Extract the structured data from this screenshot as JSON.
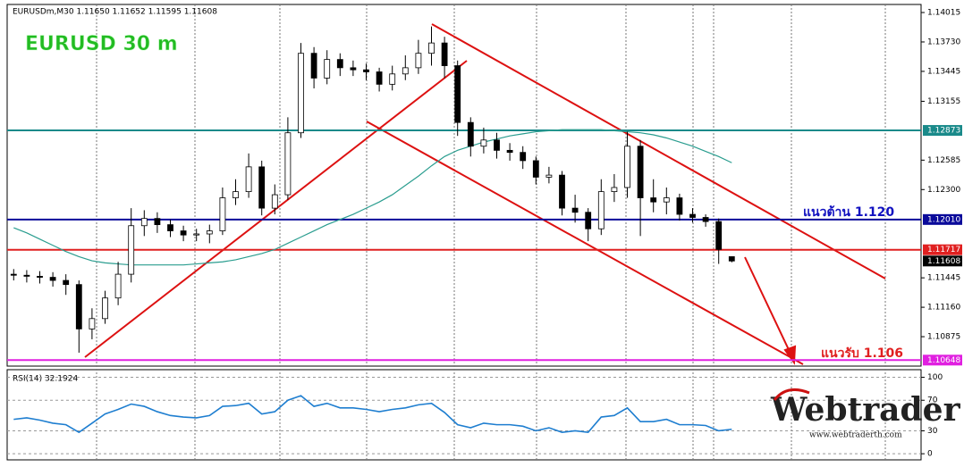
{
  "chart_data": [
    {
      "type": "candlestick",
      "header": "EURUSDm,M30  1.11650 1.11652 1.11595 1.11608",
      "title": "EURUSD 30 m",
      "open": [
        1.1148,
        1.1147,
        1.1146,
        1.1145,
        1.1142,
        1.1138,
        1.1095,
        1.1105,
        1.1125,
        1.1148,
        1.1195,
        1.1202,
        1.1196,
        1.119,
        1.1186,
        1.1187,
        1.119,
        1.1222,
        1.1228,
        1.1252,
        1.1212,
        1.1225,
        1.1285,
        1.1362,
        1.1338,
        1.1356,
        1.1348,
        1.1346,
        1.1344,
        1.1332,
        1.1342,
        1.1348,
        1.1362,
        1.1372,
        1.135,
        1.1295,
        1.1272,
        1.1278,
        1.1268,
        1.1266,
        1.1258,
        1.1242,
        1.1244,
        1.1212,
        1.1208,
        1.1192,
        1.1228,
        1.1232,
        1.1272,
        1.1222,
        1.1218,
        1.1222,
        1.1206,
        1.1203,
        1.1199,
        1.1165
      ],
      "high": [
        1.1153,
        1.1152,
        1.1151,
        1.115,
        1.1148,
        1.1142,
        1.1115,
        1.1132,
        1.116,
        1.1212,
        1.121,
        1.1208,
        1.1201,
        1.1195,
        1.1192,
        1.1196,
        1.1232,
        1.124,
        1.1265,
        1.1258,
        1.1235,
        1.13,
        1.1372,
        1.1368,
        1.1365,
        1.1362,
        1.1355,
        1.1352,
        1.1348,
        1.135,
        1.136,
        1.1375,
        1.1388,
        1.1378,
        1.1355,
        1.13,
        1.129,
        1.1285,
        1.1275,
        1.1272,
        1.1262,
        1.1252,
        1.1248,
        1.1225,
        1.1212,
        1.124,
        1.1245,
        1.1286,
        1.1278,
        1.124,
        1.1232,
        1.1226,
        1.1212,
        1.1206,
        1.1202,
        1.11652
      ],
      "low": [
        1.1142,
        1.114,
        1.1139,
        1.1136,
        1.1128,
        1.1072,
        1.1085,
        1.11,
        1.1118,
        1.114,
        1.1185,
        1.1188,
        1.1184,
        1.118,
        1.118,
        1.1178,
        1.1186,
        1.1215,
        1.1222,
        1.1205,
        1.1206,
        1.122,
        1.128,
        1.1328,
        1.1332,
        1.134,
        1.134,
        1.1336,
        1.1325,
        1.1326,
        1.1336,
        1.1342,
        1.135,
        1.1338,
        1.1282,
        1.1262,
        1.1265,
        1.126,
        1.1258,
        1.125,
        1.1235,
        1.1236,
        1.1205,
        1.1198,
        1.118,
        1.1186,
        1.1218,
        1.1222,
        1.1185,
        1.1208,
        1.1206,
        1.12,
        1.1198,
        1.1194,
        1.1158,
        1.11595
      ],
      "close": [
        1.1147,
        1.1146,
        1.1145,
        1.1142,
        1.1138,
        1.1095,
        1.1105,
        1.1125,
        1.1148,
        1.1195,
        1.1202,
        1.1196,
        1.119,
        1.1186,
        1.1187,
        1.119,
        1.1222,
        1.1228,
        1.1252,
        1.1212,
        1.1225,
        1.1285,
        1.1362,
        1.1338,
        1.1356,
        1.1348,
        1.1346,
        1.1344,
        1.1332,
        1.1342,
        1.1348,
        1.1362,
        1.1372,
        1.135,
        1.1295,
        1.1272,
        1.1278,
        1.1268,
        1.1266,
        1.1258,
        1.1242,
        1.1244,
        1.1212,
        1.1208,
        1.1192,
        1.1228,
        1.1232,
        1.1272,
        1.1222,
        1.1218,
        1.1222,
        1.1206,
        1.1203,
        1.1199,
        1.1172,
        1.11608
      ],
      "ma": {
        "color": "#2a9d8f",
        "values": [
          1.1193,
          1.1188,
          1.1182,
          1.1176,
          1.117,
          1.1165,
          1.1161,
          1.1159,
          1.1158,
          1.1157,
          1.1157,
          1.1157,
          1.1157,
          1.1157,
          1.1158,
          1.1159,
          1.116,
          1.1162,
          1.1165,
          1.1168,
          1.1172,
          1.1178,
          1.1184,
          1.119,
          1.1196,
          1.1201,
          1.1206,
          1.1212,
          1.1218,
          1.1225,
          1.1234,
          1.1243,
          1.1253,
          1.1262,
          1.1268,
          1.1272,
          1.1276,
          1.1279,
          1.1282,
          1.1284,
          1.1286,
          1.1287,
          1.1288,
          1.1288,
          1.1288,
          1.1288,
          1.1287,
          1.1286,
          1.1285,
          1.1283,
          1.128,
          1.1276,
          1.1272,
          1.1267,
          1.1262,
          1.1256
        ]
      },
      "ylim": [
        1.1059,
        1.14093
      ],
      "yticks": [
        {
          "value": 1.14015,
          "label": "1.14015"
        },
        {
          "value": 1.1373,
          "label": "1.13730"
        },
        {
          "value": 1.13445,
          "label": "1.13445"
        },
        {
          "value": 1.13155,
          "label": "1.13155"
        },
        {
          "value": 1.12585,
          "label": "1.12585"
        },
        {
          "value": 1.123,
          "label": "1.12300"
        },
        {
          "value": 1.11445,
          "label": "1.11445"
        },
        {
          "value": 1.1116,
          "label": "1.11160"
        },
        {
          "value": 1.10875,
          "label": "1.10875"
        }
      ],
      "levels": [
        {
          "value": 1.12873,
          "color": "#1a8a8a"
        },
        {
          "value": 1.1201,
          "label": "1.12010",
          "color": "#0a0a9a"
        },
        {
          "value": 1.11717,
          "color": "#e02020"
        },
        {
          "value": 1.10648,
          "color": "#e020e0"
        }
      ],
      "annotations": [
        {
          "text": "แนวต้าน 1.120",
          "color": "#1010c0"
        },
        {
          "text": "แนวรับ 1.106",
          "color": "#e02020"
        }
      ],
      "bull_color": "#ffffff",
      "bear_color": "#000000"
    },
    {
      "type": "line",
      "title": "RSI(14) 32.1924",
      "values": [
        45,
        47,
        44,
        40,
        38,
        28,
        40,
        52,
        58,
        65,
        62,
        55,
        50,
        48,
        47,
        50,
        62,
        63,
        66,
        52,
        55,
        70,
        76,
        62,
        66,
        60,
        60,
        58,
        55,
        58,
        60,
        64,
        66,
        54,
        38,
        34,
        40,
        38,
        38,
        36,
        30,
        34,
        28,
        30,
        28,
        48,
        50,
        60,
        42,
        42,
        45,
        38,
        38,
        37,
        30,
        32
      ],
      "color": "#1e7ed0",
      "ylim": [
        -8,
        110
      ],
      "yticks": [
        100,
        70,
        30,
        0
      ]
    }
  ],
  "watermark": {
    "brand": "Webtrader",
    "url": "www.webtraderth.com"
  }
}
